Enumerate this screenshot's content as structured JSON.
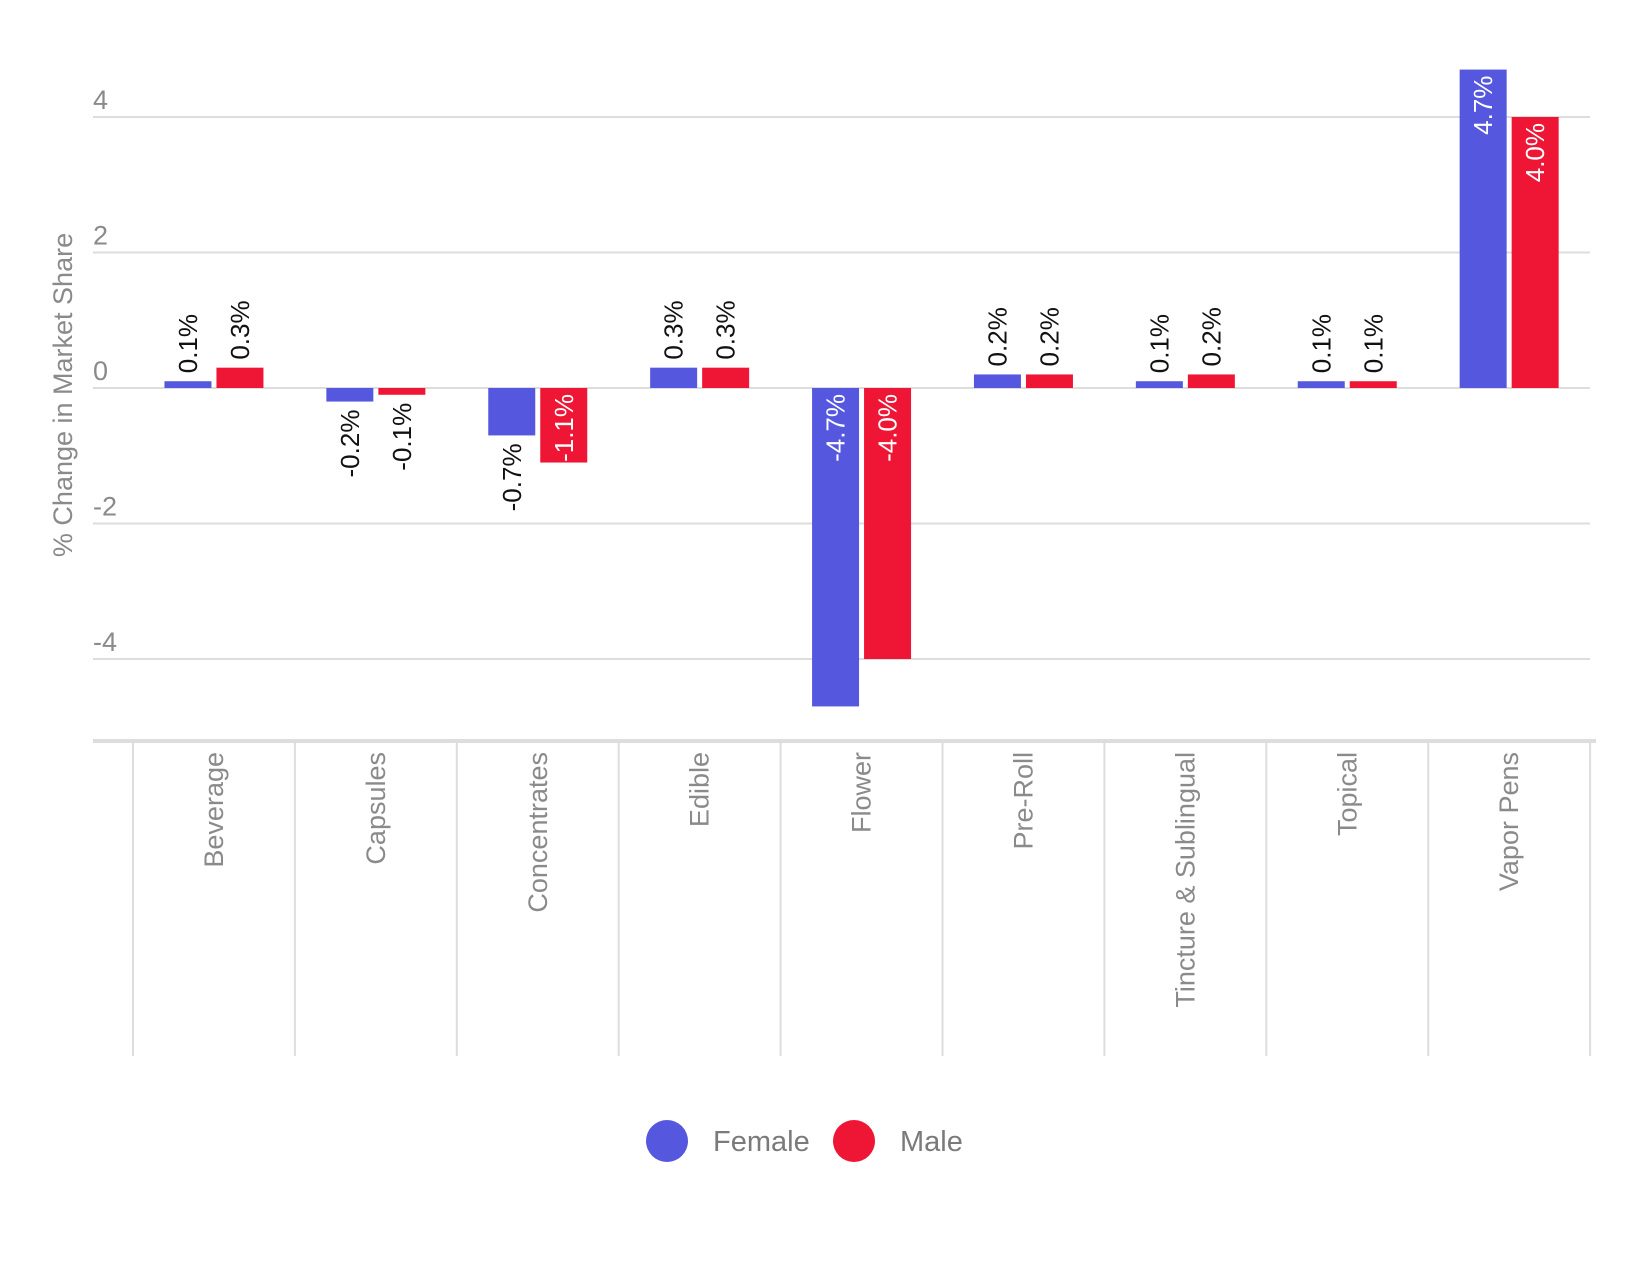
{
  "chart_data": {
    "type": "bar",
    "title": "",
    "xlabel": "",
    "ylabel": "% Change in Market Share",
    "ylim": [
      -5.2,
      5.0
    ],
    "yticks": [
      4,
      2,
      0,
      -2,
      -4
    ],
    "ytick_labels": [
      "4",
      "2",
      "0",
      "-2",
      "-4"
    ],
    "grid": true,
    "legend_position": "bottom-center",
    "categories": [
      "Beverage",
      "Capsules",
      "Concentrates",
      "Edible",
      "Flower",
      "Pre-Roll",
      "Tincture & Sublingual",
      "Topical",
      "Vapor Pens"
    ],
    "series": [
      {
        "name": "Female",
        "color": "#5558DE",
        "values": [
          0.1,
          -0.2,
          -0.7,
          0.3,
          -4.7,
          0.2,
          0.1,
          0.1,
          4.7
        ],
        "labels": [
          "0.1%",
          "-0.2%",
          "-0.7%",
          "0.3%",
          "-4.7%",
          "0.2%",
          "0.1%",
          "0.1%",
          "4.7%"
        ]
      },
      {
        "name": "Male",
        "color": "#EF1535",
        "values": [
          0.3,
          -0.1,
          -1.1,
          0.3,
          -4.0,
          0.2,
          0.2,
          0.1,
          4.0
        ],
        "labels": [
          "0.3%",
          "-0.1%",
          "-1.1%",
          "0.3%",
          "-4.0%",
          "0.2%",
          "0.2%",
          "0.1%",
          "4.0%"
        ]
      }
    ]
  }
}
